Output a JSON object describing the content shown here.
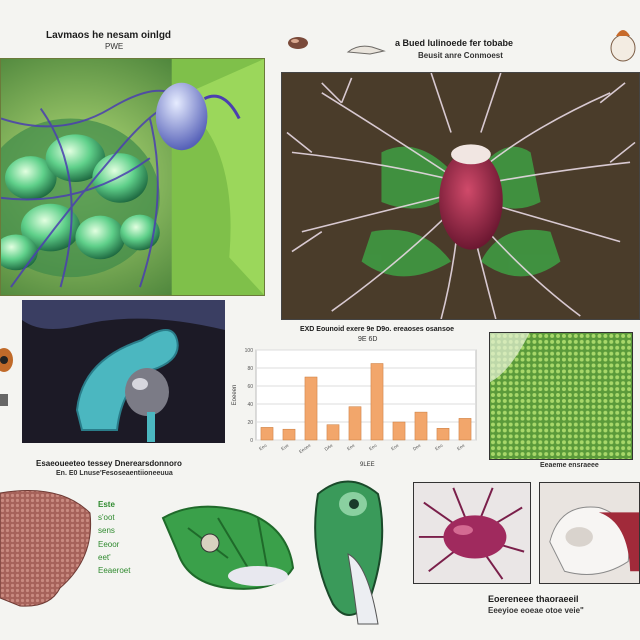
{
  "captions": {
    "top_left": "Lavmaos he nesam oinlgd",
    "top_left_sub": "PWE",
    "top_right": "a Bued lulinoede fer tobabe",
    "top_right_sub": "Beusit anre Conmoest",
    "chart_title": "EXD Eounoid exere 9e D9o. ereaoses osansoe",
    "chart_title_sub": "9E 6D",
    "chart_xcaption": "9LEE",
    "mid_left": "Esaeoueeteo tessey Dnerearsdonnoro",
    "mid_left_sub": "En. E0 Lnuse'Fesoseaentiioneeuua",
    "mid_right": "Eeaeme ensraeee",
    "bottom_labels": [
      "Este",
      "s'oot",
      "sens",
      "Eeoor",
      "eet'",
      "Eeaeroet"
    ],
    "bottom_right": "Eoereneee thaoraeeil",
    "bottom_right_sub": "Eeeyioe eoeae otoe veie\""
  },
  "chart_data": {
    "type": "bar",
    "title": "EXD Eounoid exere 9e D9o. ereaoses osansoe",
    "categories": [
      "Eeo",
      "Eue",
      "Eeoee",
      "DAe",
      "Eee",
      "Eeo",
      "Eoe",
      "Dee",
      "Eeo",
      "Eee"
    ],
    "values": [
      14,
      12,
      70,
      17,
      37,
      85,
      20,
      31,
      13,
      24
    ],
    "ylim": [
      0,
      100
    ],
    "yticks": [
      "100",
      "80",
      "60",
      "40",
      "20",
      "0"
    ],
    "ylabel": "Eoeeen",
    "grid": true,
    "bar_color": "#f2a66b"
  }
}
